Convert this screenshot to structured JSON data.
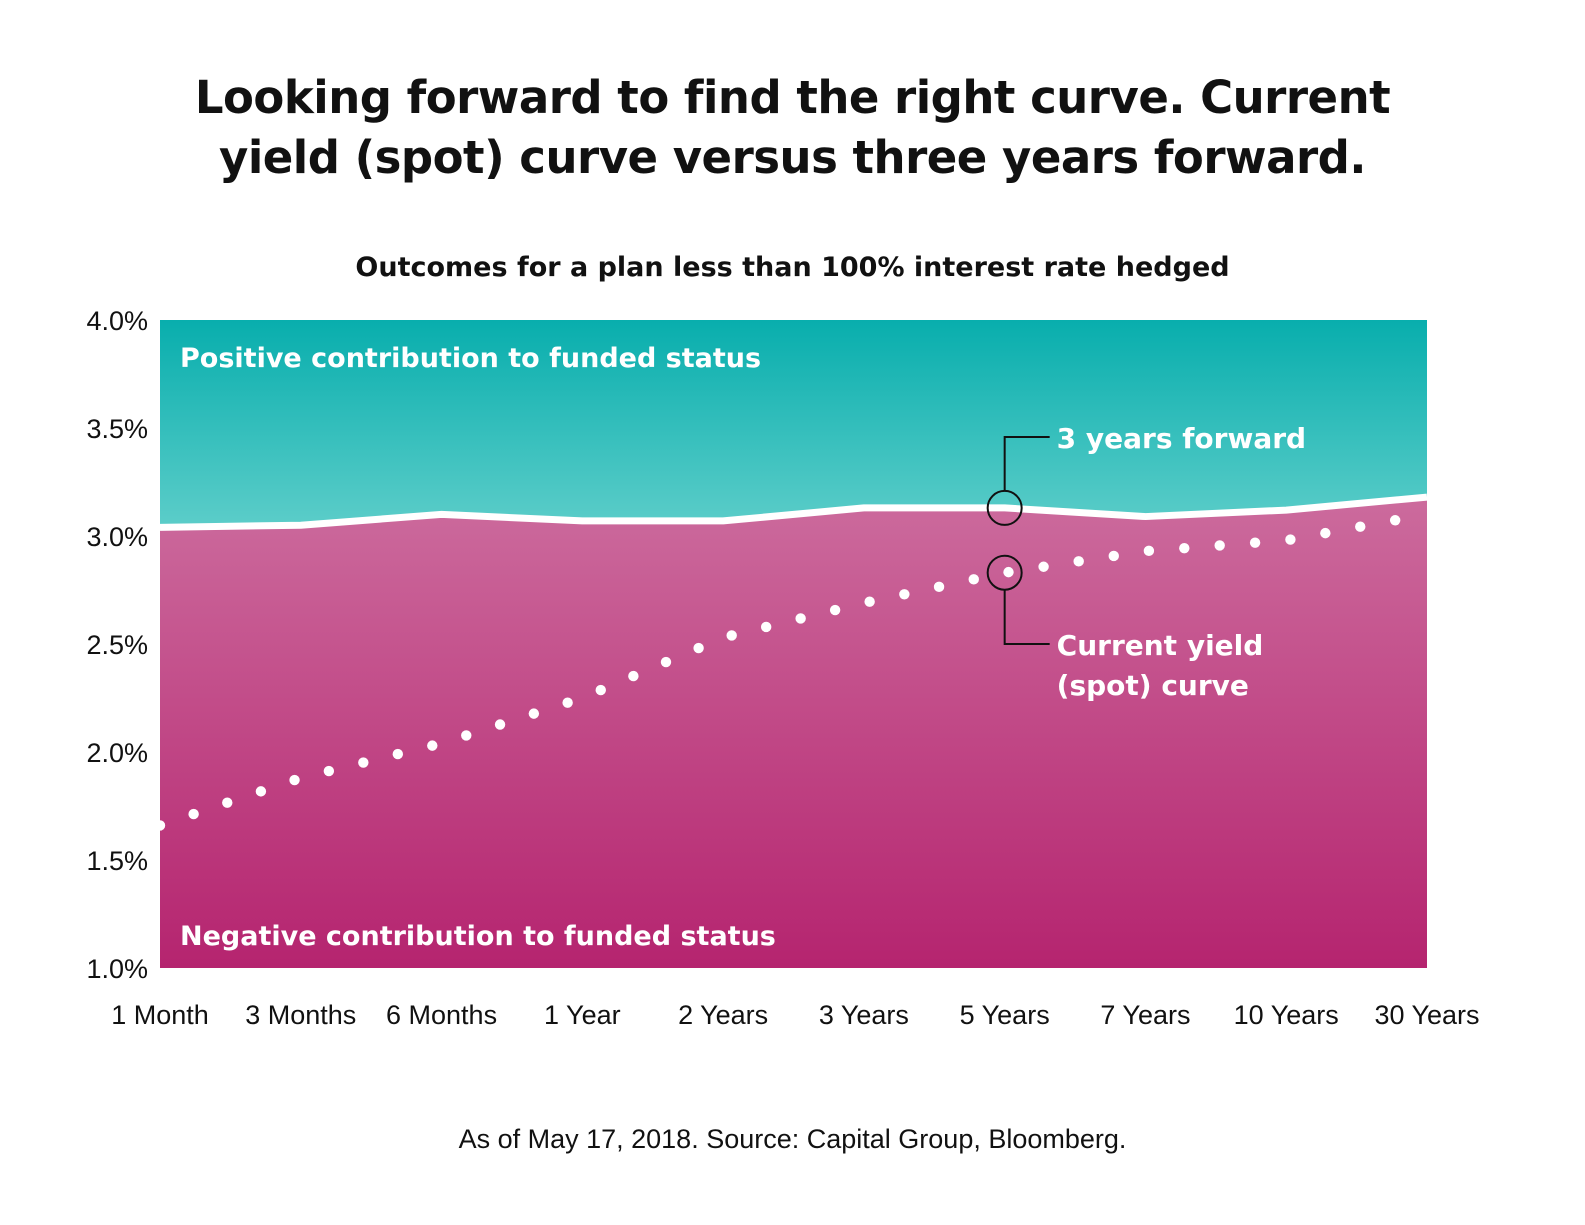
{
  "title_lines": [
    "Looking forward to find the right curve. Current",
    "yield (spot) curve versus three years forward."
  ],
  "source": "As of May 17, 2018. Source: Capital Group, Bloomberg.",
  "colors": {
    "positive_top": "#08aead",
    "positive_bottom": "#5ccdc9",
    "negative_top": "#cc6b9d",
    "negative_bottom": "#b5246f",
    "forward_line": "#ffffff",
    "spot_dots": "#ffffff",
    "annotation_marker": "#111111"
  },
  "chart_data": {
    "type": "area",
    "title": "Outcomes for a plan less than 100% interest rate hedged",
    "categories": [
      "1 Month",
      "3 Months",
      "6 Months",
      "1 Year",
      "2 Years",
      "3 Years",
      "5 Years",
      "7 Years",
      "10 Years",
      "30 Years"
    ],
    "ylim": [
      1.0,
      4.0
    ],
    "yticks": [
      1.0,
      1.5,
      2.0,
      2.5,
      3.0,
      3.5,
      4.0
    ],
    "ytick_labels": [
      "1.0%",
      "1.5%",
      "2.0%",
      "2.5%",
      "3.0%",
      "3.5%",
      "4.0%"
    ],
    "series": [
      {
        "name": "3 years forward",
        "style": "solid-line",
        "values": [
          3.04,
          3.05,
          3.1,
          3.07,
          3.07,
          3.13,
          3.13,
          3.09,
          3.12,
          3.18
        ]
      },
      {
        "name": "Current yield (spot) curve",
        "style": "dotted-line",
        "values": [
          1.66,
          1.88,
          2.04,
          2.25,
          2.53,
          2.69,
          2.83,
          2.93,
          2.98,
          3.1
        ]
      }
    ],
    "regions": {
      "above": "Positive contribution to funded status",
      "below": "Negative contribution to funded status"
    },
    "annotations": [
      {
        "label_lines": [
          "3 years forward"
        ],
        "series": 0,
        "category": "5 Years"
      },
      {
        "label_lines": [
          "Current yield",
          "(spot) curve"
        ],
        "series": 1,
        "category": "5 Years"
      }
    ],
    "grid": false,
    "legend": "none"
  }
}
